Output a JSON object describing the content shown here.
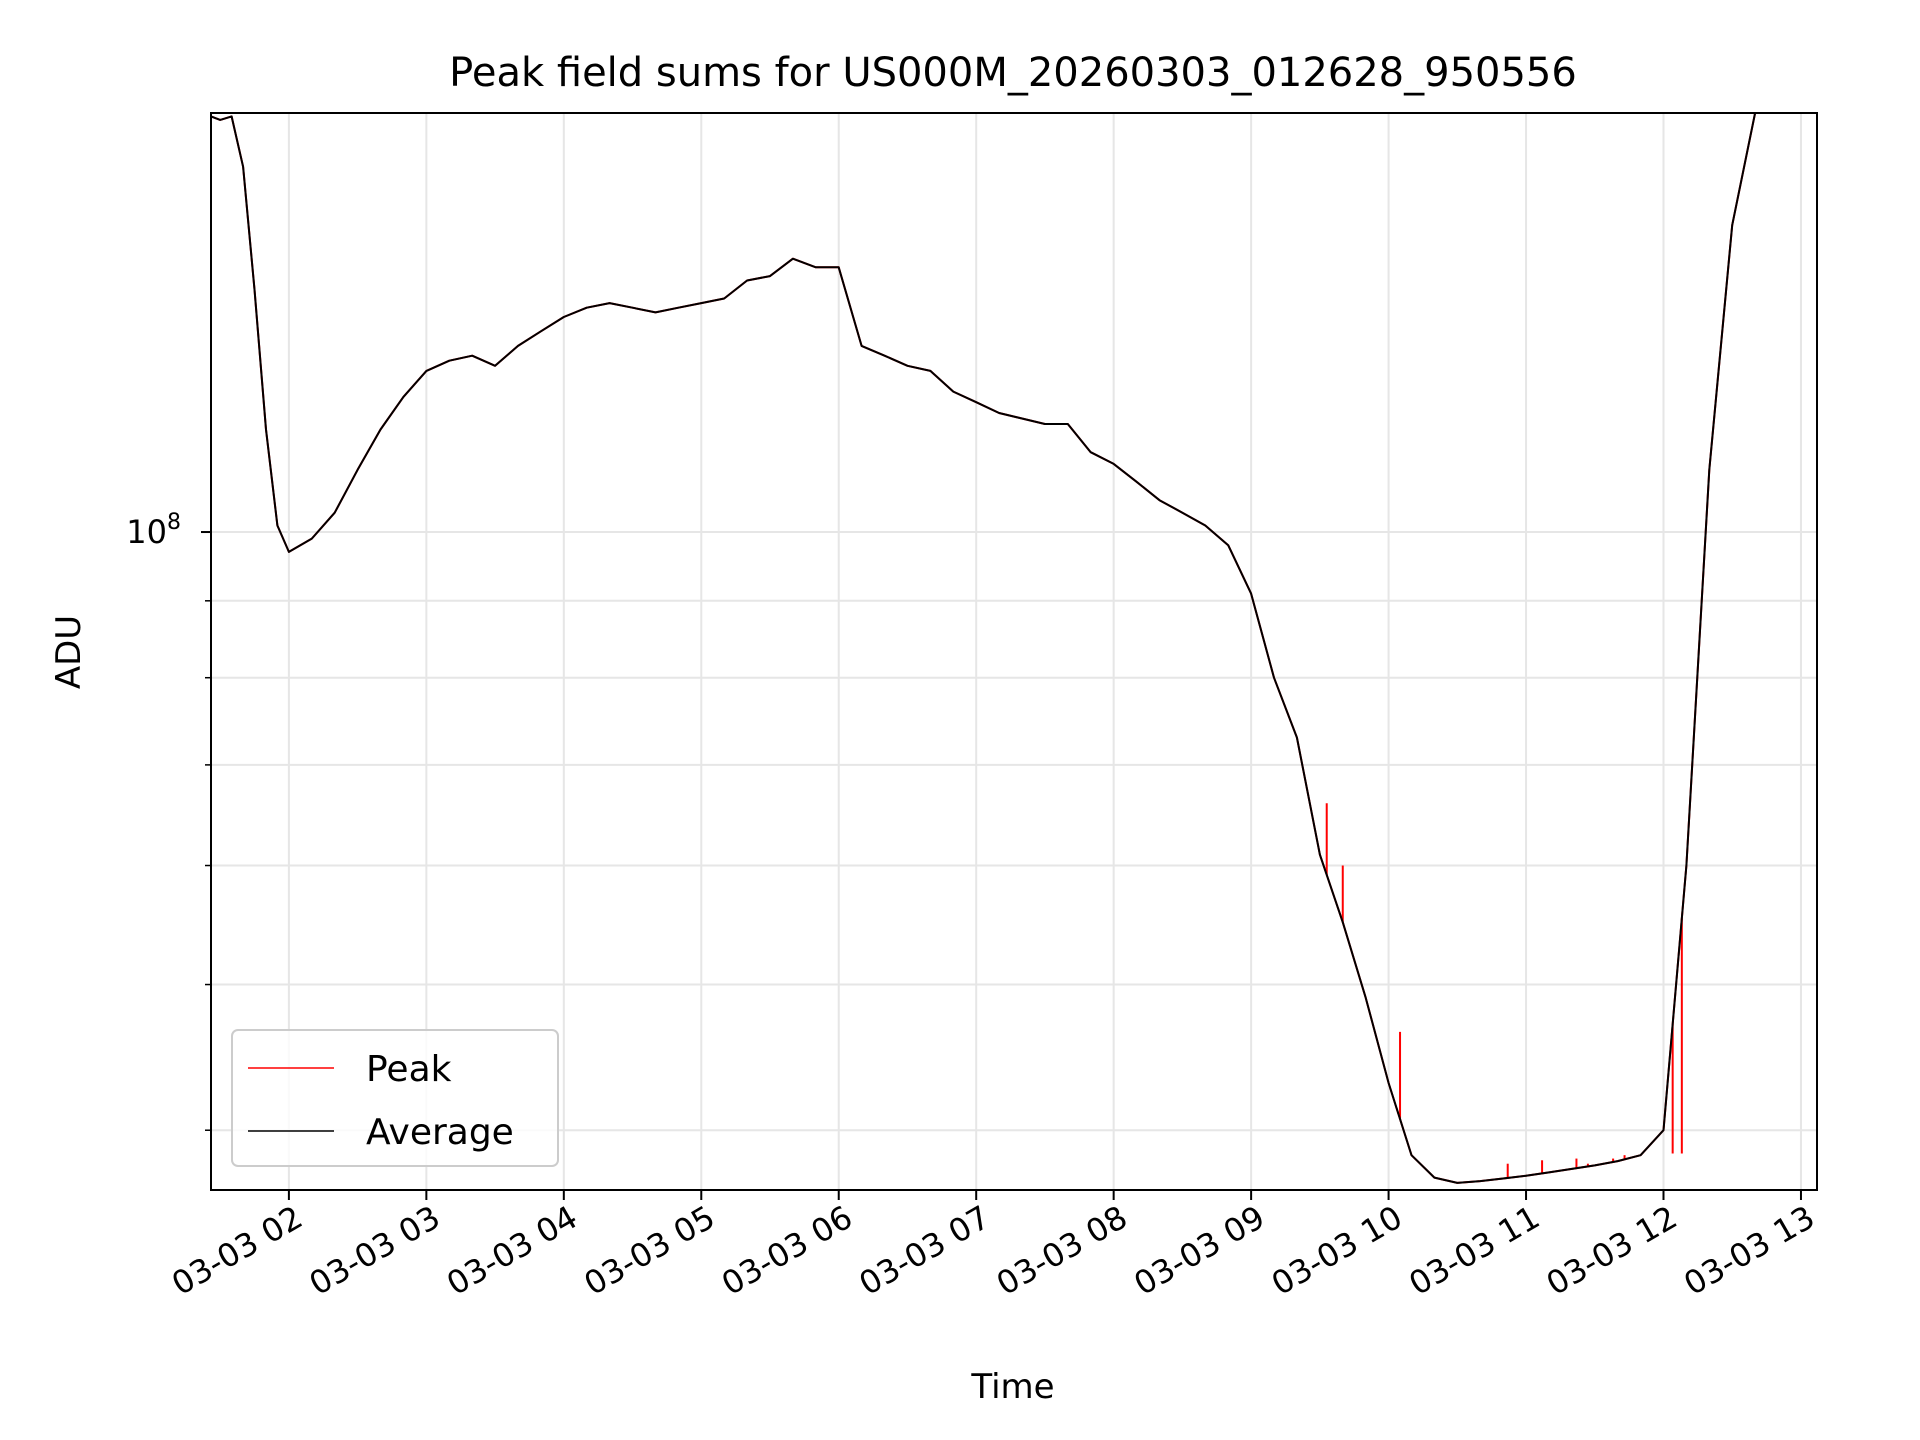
{
  "chart_data": {
    "type": "line",
    "title": "Peak field sums for US000M_20260303_012628_950556",
    "xlabel": "Time",
    "ylabel": "ADU",
    "x_scale": "time",
    "y_scale": "log",
    "xlim": [
      "2026-03-03 01:26",
      "2026-03-03 13:07"
    ],
    "ylim": [
      36500000,
      190000000
    ],
    "x_ticks": [
      "03-03 02",
      "03-03 03",
      "03-03 04",
      "03-03 05",
      "03-03 06",
      "03-03 07",
      "03-03 08",
      "03-03 09",
      "03-03 10",
      "03-03 11",
      "03-03 12",
      "03-03 13"
    ],
    "y_major_tick_label": {
      "base": "10",
      "exponent": "8"
    },
    "y_major_tick_value": 100000000,
    "y_minor_ticks": [
      40000000,
      50000000,
      60000000,
      70000000,
      80000000,
      90000000,
      200000000
    ],
    "grid": true,
    "legend": {
      "position": "lower-left"
    },
    "colors": {
      "Peak": "#ff0000",
      "Average": "#000000"
    },
    "series": [
      {
        "name": "Average",
        "x": [
          "2026-03-03 01:26",
          "2026-03-03 01:30",
          "2026-03-03 01:35",
          "2026-03-03 01:40",
          "2026-03-03 01:45",
          "2026-03-03 01:50",
          "2026-03-03 01:55",
          "2026-03-03 02:00",
          "2026-03-03 02:10",
          "2026-03-03 02:20",
          "2026-03-03 02:30",
          "2026-03-03 02:40",
          "2026-03-03 02:50",
          "2026-03-03 03:00",
          "2026-03-03 03:10",
          "2026-03-03 03:20",
          "2026-03-03 03:30",
          "2026-03-03 03:40",
          "2026-03-03 03:50",
          "2026-03-03 04:00",
          "2026-03-03 04:10",
          "2026-03-03 04:20",
          "2026-03-03 04:30",
          "2026-03-03 04:40",
          "2026-03-03 04:50",
          "2026-03-03 05:00",
          "2026-03-03 05:10",
          "2026-03-03 05:20",
          "2026-03-03 05:30",
          "2026-03-03 05:40",
          "2026-03-03 05:50",
          "2026-03-03 06:00",
          "2026-03-03 06:10",
          "2026-03-03 06:20",
          "2026-03-03 06:30",
          "2026-03-03 06:40",
          "2026-03-03 06:50",
          "2026-03-03 07:00",
          "2026-03-03 07:10",
          "2026-03-03 07:20",
          "2026-03-03 07:30",
          "2026-03-03 07:40",
          "2026-03-03 07:50",
          "2026-03-03 08:00",
          "2026-03-03 08:10",
          "2026-03-03 08:20",
          "2026-03-03 08:30",
          "2026-03-03 08:40",
          "2026-03-03 08:50",
          "2026-03-03 09:00",
          "2026-03-03 09:10",
          "2026-03-03 09:20",
          "2026-03-03 09:30",
          "2026-03-03 09:40",
          "2026-03-03 09:50",
          "2026-03-03 10:00",
          "2026-03-03 10:10",
          "2026-03-03 10:20",
          "2026-03-03 10:30",
          "2026-03-03 10:40",
          "2026-03-03 10:50",
          "2026-03-03 11:00",
          "2026-03-03 11:10",
          "2026-03-03 11:20",
          "2026-03-03 11:30",
          "2026-03-03 11:40",
          "2026-03-03 11:50",
          "2026-03-03 12:00",
          "2026-03-03 12:10",
          "2026-03-03 12:20",
          "2026-03-03 12:30",
          "2026-03-03 12:40",
          "2026-03-03 12:50",
          "2026-03-03 13:00"
        ],
        "y": [
          189000000,
          188000000,
          189000000,
          175000000,
          145000000,
          117000000,
          101000000,
          97000000,
          99000000,
          103000000,
          110000000,
          117000000,
          123000000,
          128000000,
          130000000,
          131000000,
          129000000,
          133000000,
          136000000,
          139000000,
          141000000,
          142000000,
          141000000,
          140000000,
          141000000,
          142000000,
          143000000,
          147000000,
          148000000,
          152000000,
          150000000,
          150000000,
          133000000,
          131000000,
          129000000,
          128000000,
          124000000,
          122000000,
          120000000,
          119000000,
          118000000,
          118000000,
          113000000,
          111000000,
          108000000,
          105000000,
          103000000,
          101000000,
          98000000,
          91000000,
          80000000,
          73000000,
          61000000,
          55000000,
          49000000,
          43000000,
          38500000,
          37200000,
          36900000,
          37000000,
          37150000,
          37300000,
          37500000,
          37700000,
          37900000,
          38150000,
          38500000,
          40000000,
          60000000,
          110000000,
          160000000,
          190000000,
          190000000,
          190000000
        ]
      },
      {
        "name": "Peak",
        "x": [
          "2026-03-03 01:26",
          "2026-03-03 01:30",
          "2026-03-03 01:35",
          "2026-03-03 01:40",
          "2026-03-03 01:45",
          "2026-03-03 01:50",
          "2026-03-03 01:55",
          "2026-03-03 02:00",
          "2026-03-03 02:10",
          "2026-03-03 02:20",
          "2026-03-03 02:30",
          "2026-03-03 02:40",
          "2026-03-03 02:50",
          "2026-03-03 03:00",
          "2026-03-03 03:10",
          "2026-03-03 03:20",
          "2026-03-03 03:30",
          "2026-03-03 03:40",
          "2026-03-03 03:50",
          "2026-03-03 04:00",
          "2026-03-03 04:10",
          "2026-03-03 04:20",
          "2026-03-03 04:30",
          "2026-03-03 04:40",
          "2026-03-03 04:50",
          "2026-03-03 05:00",
          "2026-03-03 05:10",
          "2026-03-03 05:20",
          "2026-03-03 05:30",
          "2026-03-03 05:40",
          "2026-03-03 05:50",
          "2026-03-03 06:00",
          "2026-03-03 06:10",
          "2026-03-03 06:20",
          "2026-03-03 06:30",
          "2026-03-03 06:40",
          "2026-03-03 06:50",
          "2026-03-03 07:00",
          "2026-03-03 07:10",
          "2026-03-03 07:20",
          "2026-03-03 07:30",
          "2026-03-03 07:40",
          "2026-03-03 07:50",
          "2026-03-03 08:00",
          "2026-03-03 08:10",
          "2026-03-03 08:20",
          "2026-03-03 08:30",
          "2026-03-03 08:40",
          "2026-03-03 08:50",
          "2026-03-03 09:00",
          "2026-03-03 09:10",
          "2026-03-03 09:20",
          "2026-03-03 09:30",
          "2026-03-03 09:40",
          "2026-03-03 09:50",
          "2026-03-03 10:00",
          "2026-03-03 10:10",
          "2026-03-03 10:20",
          "2026-03-03 10:30",
          "2026-03-03 10:40",
          "2026-03-03 10:50",
          "2026-03-03 11:00",
          "2026-03-03 11:10",
          "2026-03-03 11:20",
          "2026-03-03 11:30",
          "2026-03-03 11:40",
          "2026-03-03 11:50",
          "2026-03-03 12:00",
          "2026-03-03 12:10",
          "2026-03-03 12:20",
          "2026-03-03 12:30",
          "2026-03-03 12:40",
          "2026-03-03 12:50",
          "2026-03-03 13:00"
        ],
        "y": [
          189000000,
          188000000,
          189000000,
          175000000,
          145000000,
          117000000,
          101000000,
          97000000,
          99000000,
          103000000,
          110000000,
          117000000,
          123000000,
          128000000,
          130000000,
          131000000,
          129000000,
          133000000,
          136000000,
          139000000,
          141000000,
          142000000,
          141000000,
          140000000,
          141000000,
          142000000,
          143000000,
          147000000,
          148000000,
          152000000,
          150000000,
          150000000,
          133000000,
          131000000,
          129000000,
          128000000,
          124000000,
          122000000,
          120000000,
          119000000,
          118000000,
          118000000,
          113000000,
          111000000,
          108000000,
          105000000,
          103000000,
          101000000,
          98000000,
          91000000,
          80000000,
          73000000,
          61000000,
          55000000,
          49000000,
          43000000,
          38500000,
          37200000,
          36900000,
          37000000,
          37150000,
          37300000,
          37500000,
          37700000,
          37900000,
          38150000,
          38500000,
          40000000,
          60000000,
          110000000,
          160000000,
          190000000,
          190000000,
          190000000
        ],
        "spikes": [
          {
            "x": "2026-03-03 09:33",
            "y": 66000000
          },
          {
            "x": "2026-03-03 09:40",
            "y": 60000000
          },
          {
            "x": "2026-03-03 10:05",
            "y": 46500000
          },
          {
            "x": "2026-03-03 10:52",
            "y": 38000000
          },
          {
            "x": "2026-03-03 11:07",
            "y": 38200000
          },
          {
            "x": "2026-03-03 11:22",
            "y": 38300000
          },
          {
            "x": "2026-03-03 11:27",
            "y": 38000000
          },
          {
            "x": "2026-03-03 11:33",
            "y": 38000000
          },
          {
            "x": "2026-03-03 11:38",
            "y": 38300000
          },
          {
            "x": "2026-03-03 11:43",
            "y": 38500000
          },
          {
            "x": "2026-03-03 12:04",
            "y": 38600000
          },
          {
            "x": "2026-03-03 12:08",
            "y": 38600000
          }
        ]
      }
    ]
  }
}
